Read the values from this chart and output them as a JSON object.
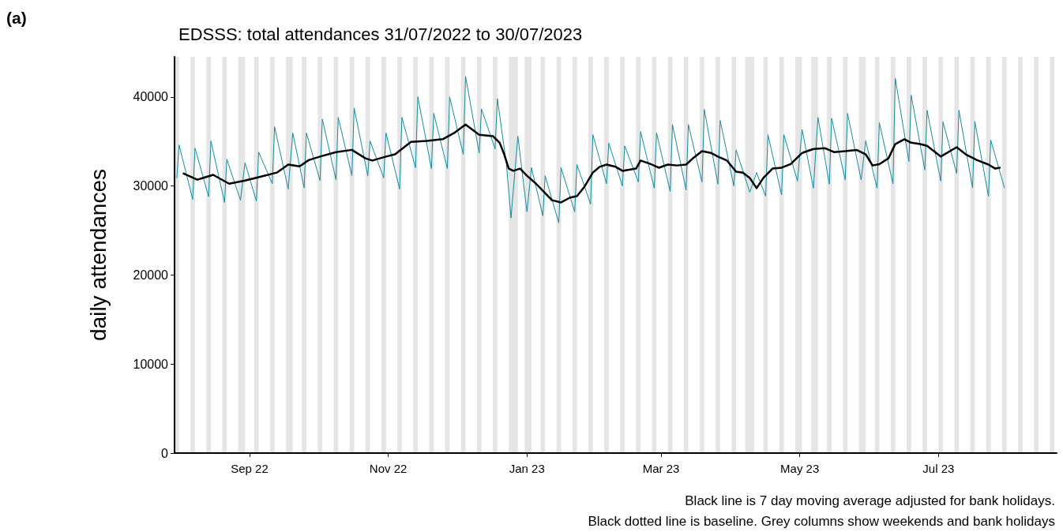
{
  "chart_data": {
    "type": "line",
    "title": "EDSSS: total attendances 31/07/2022 to 30/07/2023",
    "ylabel": "daily attendances",
    "annotations": [
      "(a)",
      "Black line is 7 day moving average adjusted for bank holidays.",
      "Black dotted line is baseline. Grey columns show weekends and bank holidays"
    ],
    "xlim": [
      "2022-07-30",
      "2023-08-22"
    ],
    "xticks": [
      {
        "value": "2022-09-01",
        "label": "Sep 22"
      },
      {
        "value": "2022-11-01",
        "label": "Nov 22"
      },
      {
        "value": "2023-01-01",
        "label": "Jan 23"
      },
      {
        "value": "2023-03-01",
        "label": "Mar 23"
      },
      {
        "value": "2023-05-01",
        "label": "May 23"
      },
      {
        "value": "2023-07-01",
        "label": "Jul 23"
      }
    ],
    "ylim": [
      0,
      44500
    ],
    "yticks": [
      0,
      10000,
      20000,
      30000,
      40000
    ],
    "grid": false,
    "marker": "none",
    "series": [
      {
        "color": "#138c9e",
        "x": [
          "2022-07-31",
          "2022-08-01",
          "2022-08-07",
          "2022-08-08",
          "2022-08-14",
          "2022-08-15",
          "2022-08-21",
          "2022-08-22",
          "2022-08-28",
          "2022-08-30",
          "2022-09-04",
          "2022-09-05",
          "2022-09-11",
          "2022-09-12",
          "2022-09-18",
          "2022-09-20",
          "2022-09-25",
          "2022-09-26",
          "2022-10-02",
          "2022-10-03",
          "2022-10-09",
          "2022-10-10",
          "2022-10-16",
          "2022-10-17",
          "2022-10-23",
          "2022-10-24",
          "2022-10-30",
          "2022-10-31",
          "2022-11-06",
          "2022-11-07",
          "2022-11-13",
          "2022-11-14",
          "2022-11-20",
          "2022-11-21",
          "2022-11-27",
          "2022-11-28",
          "2022-12-04",
          "2022-12-05",
          "2022-12-11",
          "2022-12-12",
          "2022-12-18",
          "2022-12-19",
          "2022-12-23",
          "2022-12-25",
          "2022-12-28",
          "2023-01-01",
          "2023-01-03",
          "2023-01-08",
          "2023-01-09",
          "2023-01-15",
          "2023-01-16",
          "2023-01-22",
          "2023-01-23",
          "2023-01-29",
          "2023-01-30",
          "2023-02-05",
          "2023-02-06",
          "2023-02-12",
          "2023-02-13",
          "2023-02-19",
          "2023-02-20",
          "2023-02-26",
          "2023-02-27",
          "2023-03-05",
          "2023-03-06",
          "2023-03-12",
          "2023-03-13",
          "2023-03-19",
          "2023-03-20",
          "2023-03-26",
          "2023-03-27",
          "2023-04-02",
          "2023-04-03",
          "2023-04-09",
          "2023-04-12",
          "2023-04-16",
          "2023-04-17",
          "2023-04-23",
          "2023-04-24",
          "2023-04-30",
          "2023-05-02",
          "2023-05-07",
          "2023-05-09",
          "2023-05-14",
          "2023-05-15",
          "2023-05-21",
          "2023-05-22",
          "2023-05-28",
          "2023-05-30",
          "2023-06-04",
          "2023-06-05",
          "2023-06-11",
          "2023-06-12",
          "2023-06-18",
          "2023-06-19",
          "2023-06-25",
          "2023-06-26",
          "2023-07-02",
          "2023-07-03",
          "2023-07-09",
          "2023-07-10",
          "2023-07-16",
          "2023-07-17",
          "2023-07-23",
          "2023-07-24",
          "2023-07-28",
          "2023-07-30"
        ],
        "values": [
          30900,
          34600,
          28500,
          34250,
          28800,
          35050,
          28150,
          33000,
          28400,
          32600,
          28300,
          33800,
          30250,
          36650,
          29650,
          35950,
          29800,
          35950,
          30600,
          37500,
          30700,
          37700,
          31150,
          38750,
          31150,
          35050,
          30900,
          35950,
          29650,
          37700,
          32050,
          40000,
          31950,
          38150,
          31950,
          40000,
          33550,
          42300,
          33700,
          38650,
          34150,
          39800,
          32400,
          26400,
          35600,
          27100,
          32050,
          26650,
          31150,
          25850,
          32050,
          27100,
          32400,
          27950,
          35750,
          30250,
          34800,
          30000,
          34500,
          30450,
          36100,
          29750,
          35950,
          29400,
          36900,
          29550,
          36900,
          30450,
          38600,
          30200,
          37350,
          30000,
          34050,
          29300,
          31500,
          28850,
          35750,
          29000,
          35750,
          30550,
          36350,
          29750,
          37700,
          30200,
          37600,
          30700,
          38150,
          30700,
          35050,
          29750,
          37100,
          30250,
          42100,
          32750,
          40200,
          31800,
          38500,
          30550,
          37200,
          31400,
          38500,
          29800,
          37250,
          28850,
          35150,
          31600,
          29800
        ]
      },
      {
        "color": "#000000",
        "x": [
          "2022-08-03",
          "2022-08-09",
          "2022-08-16",
          "2022-08-23",
          "2022-08-30",
          "2022-09-06",
          "2022-09-13",
          "2022-09-18",
          "2022-09-23",
          "2022-09-27",
          "2022-10-02",
          "2022-10-09",
          "2022-10-16",
          "2022-10-22",
          "2022-10-25",
          "2022-10-31",
          "2022-11-04",
          "2022-11-11",
          "2022-11-18",
          "2022-11-25",
          "2022-11-30",
          "2022-12-05",
          "2022-12-11",
          "2022-12-17",
          "2022-12-20",
          "2022-12-22",
          "2022-12-24",
          "2022-12-26",
          "2022-12-29",
          "2023-01-01",
          "2023-01-05",
          "2023-01-09",
          "2023-01-12",
          "2023-01-16",
          "2023-01-20",
          "2023-01-23",
          "2023-01-26",
          "2023-01-30",
          "2023-02-02",
          "2023-02-05",
          "2023-02-09",
          "2023-02-12",
          "2023-02-18",
          "2023-02-20",
          "2023-02-24",
          "2023-02-28",
          "2023-03-04",
          "2023-03-08",
          "2023-03-12",
          "2023-03-15",
          "2023-03-19",
          "2023-03-23",
          "2023-03-26",
          "2023-03-30",
          "2023-04-03",
          "2023-04-06",
          "2023-04-09",
          "2023-04-12",
          "2023-04-15",
          "2023-04-19",
          "2023-04-23",
          "2023-04-27",
          "2023-05-02",
          "2023-05-07",
          "2023-05-12",
          "2023-05-16",
          "2023-05-21",
          "2023-05-26",
          "2023-05-30",
          "2023-06-02",
          "2023-06-05",
          "2023-06-09",
          "2023-06-12",
          "2023-06-16",
          "2023-06-19",
          "2023-06-23",
          "2023-06-26",
          "2023-07-02",
          "2023-07-09",
          "2023-07-13",
          "2023-07-18",
          "2023-07-23",
          "2023-07-26",
          "2023-07-28"
        ],
        "values": [
          31400,
          30700,
          31250,
          30250,
          30600,
          31050,
          31500,
          32400,
          32200,
          32900,
          33300,
          33800,
          34050,
          33100,
          32850,
          33300,
          33550,
          34950,
          35050,
          35250,
          35950,
          36900,
          35750,
          35600,
          34850,
          33550,
          31950,
          31700,
          31950,
          31150,
          30250,
          29200,
          28400,
          28150,
          28700,
          28850,
          29800,
          31500,
          32150,
          32400,
          32150,
          31700,
          31950,
          32850,
          32500,
          32050,
          32400,
          32300,
          32400,
          33100,
          33900,
          33700,
          33300,
          32850,
          31600,
          31500,
          30900,
          29750,
          30900,
          31950,
          32050,
          32450,
          33700,
          34150,
          34250,
          33800,
          33900,
          34050,
          33550,
          32300,
          32450,
          33100,
          34700,
          35250,
          34850,
          34700,
          34500,
          33300,
          34350,
          33550,
          32900,
          32400,
          31950,
          32050
        ]
      }
    ],
    "bands": [
      {
        "axis": "x",
        "from": "2022-07-30",
        "to": "2022-08-01",
        "color": "#e5e5e5"
      },
      {
        "axis": "x",
        "from": "2022-08-06",
        "to": "2022-08-08",
        "color": "#e5e5e5"
      },
      {
        "axis": "x",
        "from": "2022-08-13",
        "to": "2022-08-15",
        "color": "#e5e5e5"
      },
      {
        "axis": "x",
        "from": "2022-08-20",
        "to": "2022-08-22",
        "color": "#e5e5e5"
      },
      {
        "axis": "x",
        "from": "2022-08-27",
        "to": "2022-08-30",
        "color": "#e5e5e5"
      },
      {
        "axis": "x",
        "from": "2022-09-03",
        "to": "2022-09-05",
        "color": "#e5e5e5"
      },
      {
        "axis": "x",
        "from": "2022-09-10",
        "to": "2022-09-12",
        "color": "#e5e5e5"
      },
      {
        "axis": "x",
        "from": "2022-09-17",
        "to": "2022-09-20",
        "color": "#e5e5e5"
      },
      {
        "axis": "x",
        "from": "2022-09-24",
        "to": "2022-09-26",
        "color": "#e5e5e5"
      },
      {
        "axis": "x",
        "from": "2022-10-01",
        "to": "2022-10-03",
        "color": "#e5e5e5"
      },
      {
        "axis": "x",
        "from": "2022-10-08",
        "to": "2022-10-10",
        "color": "#e5e5e5"
      },
      {
        "axis": "x",
        "from": "2022-10-15",
        "to": "2022-10-17",
        "color": "#e5e5e5"
      },
      {
        "axis": "x",
        "from": "2022-10-22",
        "to": "2022-10-24",
        "color": "#e5e5e5"
      },
      {
        "axis": "x",
        "from": "2022-10-29",
        "to": "2022-10-31",
        "color": "#e5e5e5"
      },
      {
        "axis": "x",
        "from": "2022-11-05",
        "to": "2022-11-07",
        "color": "#e5e5e5"
      },
      {
        "axis": "x",
        "from": "2022-11-12",
        "to": "2022-11-14",
        "color": "#e5e5e5"
      },
      {
        "axis": "x",
        "from": "2022-11-19",
        "to": "2022-11-21",
        "color": "#e5e5e5"
      },
      {
        "axis": "x",
        "from": "2022-11-26",
        "to": "2022-11-28",
        "color": "#e5e5e5"
      },
      {
        "axis": "x",
        "from": "2022-12-03",
        "to": "2022-12-05",
        "color": "#e5e5e5"
      },
      {
        "axis": "x",
        "from": "2022-12-10",
        "to": "2022-12-12",
        "color": "#e5e5e5"
      },
      {
        "axis": "x",
        "from": "2022-12-17",
        "to": "2022-12-19",
        "color": "#e5e5e5"
      },
      {
        "axis": "x",
        "from": "2022-12-24",
        "to": "2022-12-28",
        "color": "#e5e5e5"
      },
      {
        "axis": "x",
        "from": "2022-12-31",
        "to": "2023-01-03",
        "color": "#e5e5e5"
      },
      {
        "axis": "x",
        "from": "2023-01-07",
        "to": "2023-01-09",
        "color": "#e5e5e5"
      },
      {
        "axis": "x",
        "from": "2023-01-14",
        "to": "2023-01-16",
        "color": "#e5e5e5"
      },
      {
        "axis": "x",
        "from": "2023-01-21",
        "to": "2023-01-23",
        "color": "#e5e5e5"
      },
      {
        "axis": "x",
        "from": "2023-01-28",
        "to": "2023-01-30",
        "color": "#e5e5e5"
      },
      {
        "axis": "x",
        "from": "2023-02-04",
        "to": "2023-02-06",
        "color": "#e5e5e5"
      },
      {
        "axis": "x",
        "from": "2023-02-11",
        "to": "2023-02-13",
        "color": "#e5e5e5"
      },
      {
        "axis": "x",
        "from": "2023-02-18",
        "to": "2023-02-20",
        "color": "#e5e5e5"
      },
      {
        "axis": "x",
        "from": "2023-02-25",
        "to": "2023-02-27",
        "color": "#e5e5e5"
      },
      {
        "axis": "x",
        "from": "2023-03-04",
        "to": "2023-03-06",
        "color": "#e5e5e5"
      },
      {
        "axis": "x",
        "from": "2023-03-11",
        "to": "2023-03-13",
        "color": "#e5e5e5"
      },
      {
        "axis": "x",
        "from": "2023-03-18",
        "to": "2023-03-20",
        "color": "#e5e5e5"
      },
      {
        "axis": "x",
        "from": "2023-03-25",
        "to": "2023-03-27",
        "color": "#e5e5e5"
      },
      {
        "axis": "x",
        "from": "2023-04-01",
        "to": "2023-04-03",
        "color": "#e5e5e5"
      },
      {
        "axis": "x",
        "from": "2023-04-07",
        "to": "2023-04-11",
        "color": "#e5e5e5"
      },
      {
        "axis": "x",
        "from": "2023-04-15",
        "to": "2023-04-17",
        "color": "#e5e5e5"
      },
      {
        "axis": "x",
        "from": "2023-04-22",
        "to": "2023-04-24",
        "color": "#e5e5e5"
      },
      {
        "axis": "x",
        "from": "2023-04-29",
        "to": "2023-05-02",
        "color": "#e5e5e5"
      },
      {
        "axis": "x",
        "from": "2023-05-06",
        "to": "2023-05-09",
        "color": "#e5e5e5"
      },
      {
        "axis": "x",
        "from": "2023-05-13",
        "to": "2023-05-15",
        "color": "#e5e5e5"
      },
      {
        "axis": "x",
        "from": "2023-05-20",
        "to": "2023-05-22",
        "color": "#e5e5e5"
      },
      {
        "axis": "x",
        "from": "2023-05-27",
        "to": "2023-05-30",
        "color": "#e5e5e5"
      },
      {
        "axis": "x",
        "from": "2023-06-03",
        "to": "2023-06-05",
        "color": "#e5e5e5"
      },
      {
        "axis": "x",
        "from": "2023-06-10",
        "to": "2023-06-12",
        "color": "#e5e5e5"
      },
      {
        "axis": "x",
        "from": "2023-06-17",
        "to": "2023-06-19",
        "color": "#e5e5e5"
      },
      {
        "axis": "x",
        "from": "2023-06-24",
        "to": "2023-06-26",
        "color": "#e5e5e5"
      },
      {
        "axis": "x",
        "from": "2023-07-01",
        "to": "2023-07-03",
        "color": "#e5e5e5"
      },
      {
        "axis": "x",
        "from": "2023-07-08",
        "to": "2023-07-10",
        "color": "#e5e5e5"
      },
      {
        "axis": "x",
        "from": "2023-07-15",
        "to": "2023-07-17",
        "color": "#e5e5e5"
      },
      {
        "axis": "x",
        "from": "2023-07-22",
        "to": "2023-07-24",
        "color": "#e5e5e5"
      },
      {
        "axis": "x",
        "from": "2023-07-29",
        "to": "2023-07-31",
        "color": "#e5e5e5"
      },
      {
        "axis": "x",
        "from": "2023-08-05",
        "to": "2023-08-07",
        "color": "#e5e5e5"
      },
      {
        "axis": "x",
        "from": "2023-08-12",
        "to": "2023-08-14",
        "color": "#e5e5e5"
      },
      {
        "axis": "x",
        "from": "2023-08-19",
        "to": "2023-08-21",
        "color": "#e5e5e5"
      }
    ]
  }
}
